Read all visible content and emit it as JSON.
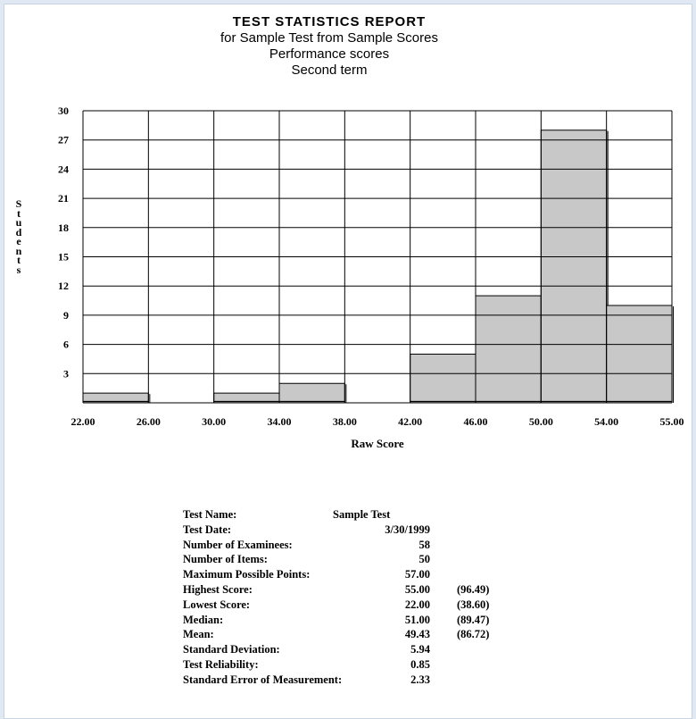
{
  "report": {
    "title": "TEST STATISTICS REPORT",
    "subtitle_lines": [
      "for Sample Test from Sample Scores",
      "Performance scores",
      "Second term"
    ]
  },
  "chart_data": {
    "type": "bar",
    "xlabel": "Raw Score",
    "ylabel": "Students",
    "ylim": [
      0,
      30
    ],
    "yticks": [
      3,
      6,
      9,
      12,
      15,
      18,
      21,
      24,
      27,
      30
    ],
    "xtick_labels": [
      "22.00",
      "26.00",
      "30.00",
      "34.00",
      "38.00",
      "42.00",
      "46.00",
      "50.00",
      "54.00",
      "55.00"
    ],
    "bins": [
      {
        "from": "22.00",
        "to": "26.00",
        "value": 1
      },
      {
        "from": "26.00",
        "to": "30.00",
        "value": 0
      },
      {
        "from": "30.00",
        "to": "34.00",
        "value": 1
      },
      {
        "from": "34.00",
        "to": "38.00",
        "value": 2
      },
      {
        "from": "38.00",
        "to": "42.00",
        "value": 0
      },
      {
        "from": "42.00",
        "to": "46.00",
        "value": 5
      },
      {
        "from": "46.00",
        "to": "50.00",
        "value": 11
      },
      {
        "from": "50.00",
        "to": "54.00",
        "value": 28
      },
      {
        "from": "54.00",
        "to": "55.00",
        "value": 10
      }
    ],
    "grid": true,
    "bar_color": "#c8c8c8",
    "edge_color": "#000000"
  },
  "stats": [
    {
      "label": "Test Name:",
      "value": "Sample Test",
      "left": true
    },
    {
      "label": "Test Date:",
      "value": "3/30/1999"
    },
    {
      "label": "Number of Examinees:",
      "value": "58"
    },
    {
      "label": "Number of Items:",
      "value": "50"
    },
    {
      "label": "Maximum Possible Points:",
      "value": "57.00"
    },
    {
      "label": "Highest Score:",
      "value": "55.00",
      "pct": "(96.49)"
    },
    {
      "label": "Lowest Score:",
      "value": "22.00",
      "pct": "(38.60)"
    },
    {
      "label": "Median:",
      "value": "51.00",
      "pct": "(89.47)"
    },
    {
      "label": "Mean:",
      "value": "49.43",
      "pct": "(86.72)"
    },
    {
      "label": "Standard Deviation:",
      "value": "5.94"
    },
    {
      "label": "Test Reliability:",
      "value": "0.85"
    },
    {
      "label": "Standard Error of Measurement:",
      "value": "2.33"
    }
  ]
}
